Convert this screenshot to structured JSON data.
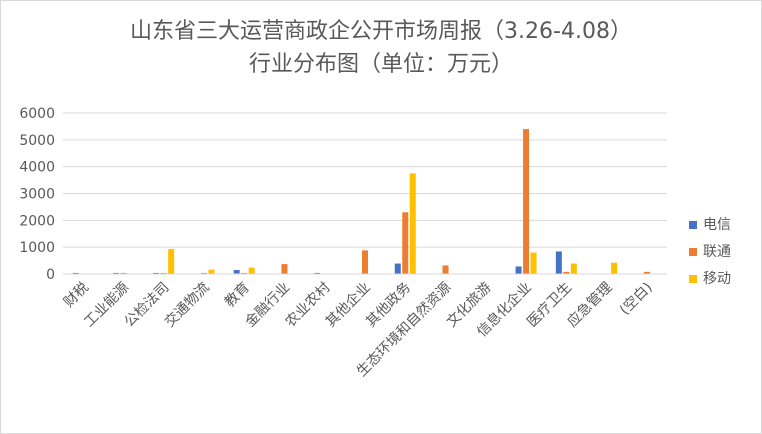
{
  "chart_data": {
    "type": "bar",
    "title_line1": "山东省三大运营商政企公开市场周报（3.26-4.08）",
    "title_line2": "行业分布图（单位：万元）",
    "categories": [
      "财税",
      "工业能源",
      "公检法司",
      "交通物流",
      "教育",
      "金融行业",
      "农业农村",
      "其他企业",
      "其他政务",
      "生态环境和自然资源",
      "文化旅游",
      "信息化企业",
      "医疗卫生",
      "应急管理",
      "(空白)"
    ],
    "series": [
      {
        "name": "电信",
        "color": "#4472C4",
        "values": [
          40,
          40,
          40,
          0,
          150,
          0,
          40,
          0,
          390,
          0,
          0,
          280,
          840,
          0,
          0
        ]
      },
      {
        "name": "联通",
        "color": "#ED7D31",
        "values": [
          0,
          40,
          40,
          40,
          40,
          370,
          0,
          880,
          2300,
          320,
          0,
          5400,
          80,
          0,
          80
        ]
      },
      {
        "name": "移动",
        "color": "#FFC000",
        "values": [
          0,
          0,
          930,
          160,
          240,
          0,
          0,
          0,
          3750,
          0,
          0,
          800,
          390,
          420,
          0
        ]
      }
    ],
    "yticks": [
      "0",
      "1000",
      "2000",
      "3000",
      "4000",
      "5000",
      "6000"
    ],
    "ylim": [
      0,
      6000
    ],
    "grid": true,
    "legend": "right"
  }
}
